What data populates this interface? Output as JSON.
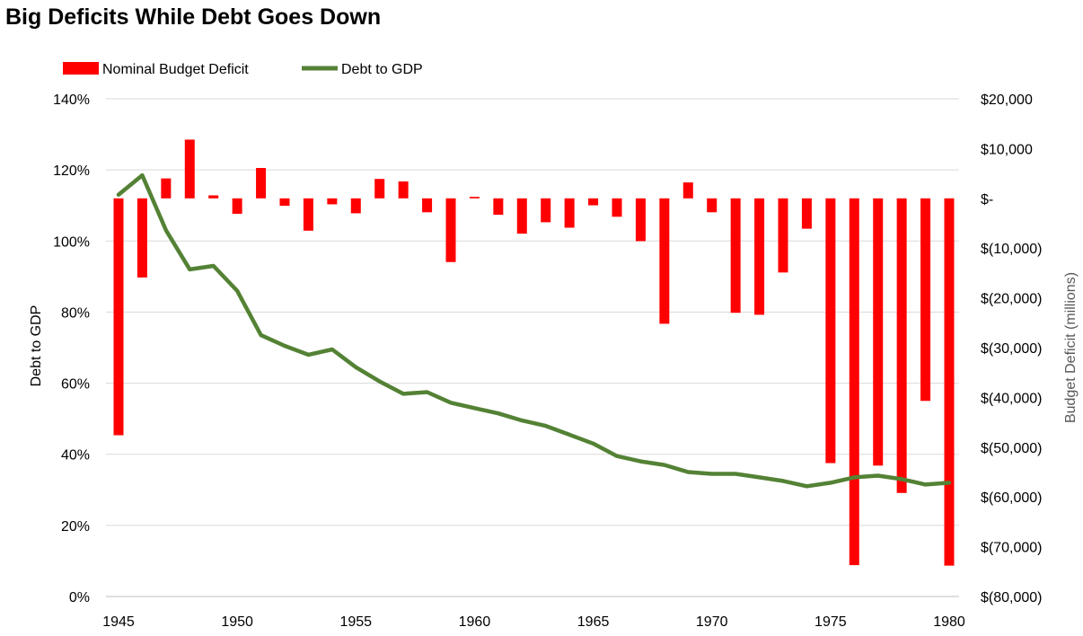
{
  "chart_data": {
    "type": "bar+line",
    "title": "Big Deficits While Debt Goes Down",
    "legend": {
      "position": "top-left",
      "entries": [
        {
          "label": "Nominal Budget Deficit",
          "color": "#ff0000",
          "kind": "bar"
        },
        {
          "label": "Debt to GDP",
          "color": "#548235",
          "kind": "line"
        }
      ]
    },
    "x": [
      1945,
      1946,
      1947,
      1948,
      1949,
      1950,
      1951,
      1952,
      1953,
      1954,
      1955,
      1956,
      1957,
      1958,
      1959,
      1960,
      1961,
      1962,
      1963,
      1964,
      1965,
      1966,
      1967,
      1968,
      1969,
      1970,
      1971,
      1972,
      1973,
      1974,
      1975,
      1976,
      1977,
      1978,
      1979,
      1980
    ],
    "x_ticks": [
      "1945",
      "1950",
      "1955",
      "1960",
      "1965",
      "1970",
      "1975",
      "1980"
    ],
    "y_left": {
      "label": "Debt to GDP",
      "range": [
        0,
        140
      ],
      "ticks": [
        "0%",
        "20%",
        "40%",
        "60%",
        "80%",
        "100%",
        "120%",
        "140%"
      ],
      "grid": true
    },
    "y_right": {
      "label": "Budget Deficit (millions)",
      "range": [
        -80000,
        20000
      ],
      "ticks": [
        "$(80,000)",
        "$(70,000)",
        "$(60,000)",
        "$(50,000)",
        "$(40,000)",
        "$(30,000)",
        "$(20,000)",
        "$(10,000)",
        "$-",
        "$10,000",
        "$20,000"
      ]
    },
    "series": [
      {
        "name": "Nominal Budget Deficit",
        "type": "bar",
        "axis": "right",
        "color": "#ff0000",
        "values": [
          -47600,
          -15900,
          4000,
          11800,
          600,
          -3100,
          6100,
          -1500,
          -6500,
          -1200,
          -3000,
          3900,
          3400,
          -2800,
          -12800,
          300,
          -3300,
          -7100,
          -4800,
          -5900,
          -1400,
          -3700,
          -8600,
          -25200,
          3200,
          -2800,
          -23000,
          -23400,
          -14900,
          -6100,
          -53200,
          -73700,
          -53700,
          -59200,
          -40700,
          -73800
        ]
      },
      {
        "name": "Debt to GDP",
        "type": "line",
        "axis": "left",
        "color": "#548235",
        "values": [
          113,
          118.5,
          103,
          92,
          93,
          86,
          73.5,
          70.5,
          68,
          69.5,
          64.5,
          60.5,
          57,
          57.5,
          54.5,
          53,
          51.5,
          49.5,
          48,
          45.5,
          43,
          39.5,
          38,
          37,
          35,
          34.5,
          34.5,
          33.5,
          32.5,
          31,
          32,
          33.5,
          34,
          33,
          31.5,
          32
        ]
      }
    ]
  }
}
